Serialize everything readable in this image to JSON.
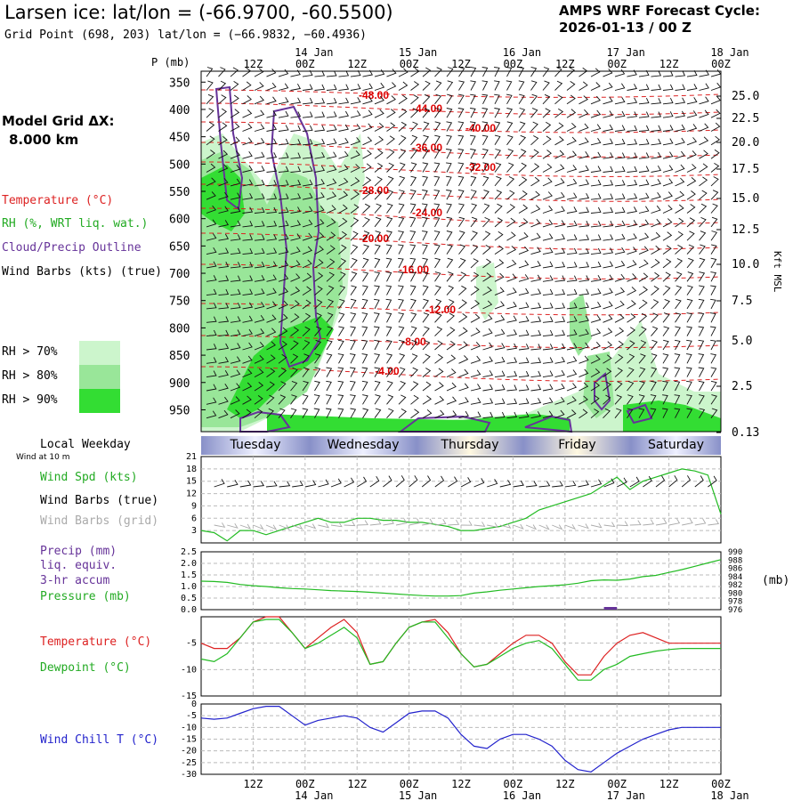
{
  "header": {
    "title": "Larsen ice:  lat/lon = (-66.9700, -60.5500)",
    "subtitle": "Grid Point (698, 203) lat/lon = (−66.9832, −60.4936)",
    "cycle_line1": "AMPS WRF Forecast Cycle:",
    "cycle_line2": "2026-01-13 / 00  Z"
  },
  "legend": {
    "model_grid_label": "Model Grid ΔX:",
    "model_grid_value": "8.000 km",
    "temperature": "Temperature (°C)",
    "rh": "RH (%, WRT liq. wat.)",
    "cloud": "Cloud/Precip Outline",
    "wind_barbs": "Wind Barbs (kts) (true)",
    "rh70": "RH > 70%",
    "rh80": "RH > 80%",
    "rh90": "RH > 90%",
    "colors": {
      "rh70": "#ccf5cc",
      "rh80": "#99e699",
      "rh90": "#33dd33",
      "temp": "#dd0000",
      "cloud": "#663399"
    }
  },
  "side_labels": {
    "local_weekday": "Local Weekday",
    "wind_at_10m": "Wind at 10 m",
    "wind_spd": "Wind Spd (kts)",
    "wind_barbs_true": "Wind Barbs (true)",
    "wind_barbs_grid": "Wind Barbs (grid)",
    "precip": "Precip (mm)",
    "liq_equiv": "liq. equiv.",
    "accum": "3-hr accum",
    "pressure": "Pressure (mb)",
    "temperature": "Temperature (°C)",
    "dewpoint": "Dewpoint (°C)",
    "wind_chill": "Wind Chill T (°C)",
    "pressure_unit": "(mb)",
    "p_axis": "P (mb)",
    "kft_axis": "Kft MSL"
  },
  "chart_data": [
    {
      "type": "heatmap",
      "x_time_labels": [
        "12Z",
        "00Z",
        "12Z",
        "00Z",
        "12Z",
        "00Z",
        "12Z",
        "00Z",
        "12Z",
        "00Z"
      ],
      "x_day_labels": [
        "14 Jan",
        "15 Jan",
        "16 Jan",
        "17 Jan",
        "18 Jan"
      ],
      "ylabel_left": "P (mb)",
      "y_pressure_ticks": [
        350,
        400,
        450,
        500,
        550,
        600,
        650,
        700,
        750,
        800,
        850,
        900,
        950
      ],
      "ylabel_right": "Kft MSL",
      "y_height_ticks": [
        "25.0",
        "22.5",
        "20.0",
        "17.5",
        "15.0",
        "12.5",
        "10.0",
        "7.5",
        "5.0",
        "2.5",
        "0.13"
      ],
      "temperature_contour_labels": [
        "-48.00",
        "-44.00",
        "-40.00",
        "-36.00",
        "-32.00",
        "-28.00",
        "-24.00",
        "-20.00",
        "-16.00",
        "-12.00",
        "-8.00",
        "-4.00"
      ]
    },
    {
      "type": "line",
      "weekdays": [
        "Tuesday",
        "Wednesday",
        "Thursday",
        "Friday",
        "Saturday"
      ],
      "ylim": [
        0,
        21
      ],
      "y_ticks": [
        3,
        6,
        9,
        12,
        15,
        18,
        21
      ],
      "series": [
        {
          "name": "Wind Spd (kts)",
          "color": "#22bb22",
          "x": [
            0,
            3,
            6,
            9,
            12,
            15,
            18,
            21,
            24,
            27,
            30,
            33,
            36,
            39,
            42,
            45,
            48,
            51,
            54,
            57,
            60,
            63,
            66,
            69,
            72,
            75,
            78,
            81,
            84,
            87,
            90,
            93,
            96,
            99,
            102,
            105,
            108,
            111,
            114,
            117,
            120
          ],
          "values": [
            3,
            2.5,
            0.5,
            3,
            3,
            2,
            3,
            4,
            5,
            6,
            5,
            5,
            6,
            6,
            5.5,
            5.5,
            5,
            5,
            4.5,
            4,
            3,
            3,
            3.5,
            4,
            5,
            6,
            8,
            9,
            10,
            11,
            12,
            14,
            16,
            13,
            15,
            16,
            17,
            18,
            17.5,
            16.5,
            7
          ]
        }
      ]
    },
    {
      "type": "line",
      "ylim_left": [
        0,
        2.5
      ],
      "y_ticks_left": [
        "0.0",
        "0.5",
        "1.0",
        "1.5",
        "2.0",
        "2.5"
      ],
      "ylim_right": [
        976,
        990
      ],
      "y_ticks_right": [
        976,
        978,
        980,
        982,
        984,
        986,
        988,
        990
      ],
      "series": [
        {
          "name": "Pressure (mb)",
          "color": "#22bb22",
          "x": [
            0,
            3,
            6,
            9,
            12,
            15,
            18,
            21,
            24,
            27,
            30,
            33,
            36,
            39,
            42,
            45,
            48,
            51,
            54,
            57,
            60,
            63,
            66,
            69,
            72,
            75,
            78,
            81,
            84,
            87,
            90,
            93,
            96,
            99,
            102,
            105,
            108,
            111,
            114,
            117,
            120
          ],
          "values": [
            982.9,
            982.8,
            982.6,
            982.1,
            981.8,
            981.6,
            981.3,
            981.1,
            981.0,
            980.8,
            980.6,
            980.5,
            980.4,
            980.2,
            980.0,
            979.8,
            979.6,
            979.4,
            979.3,
            979.3,
            979.4,
            980.0,
            980.3,
            980.7,
            981.0,
            981.3,
            981.6,
            981.8,
            982.0,
            982.4,
            983.0,
            983.2,
            983.1,
            983.4,
            984.0,
            984.3,
            985.0,
            985.7,
            986.5,
            987.3,
            988.1
          ]
        },
        {
          "name": "Precip (mm)",
          "color": "#663399",
          "x": [
            93,
            96
          ],
          "values": [
            0.05,
            0.05
          ]
        }
      ]
    },
    {
      "type": "line",
      "ylim": [
        -15,
        0
      ],
      "y_ticks": [
        -15,
        -10,
        -5
      ],
      "series": [
        {
          "name": "Temperature (°C)",
          "color": "#dd2222",
          "x": [
            0,
            3,
            6,
            9,
            12,
            15,
            18,
            21,
            24,
            27,
            30,
            33,
            36,
            39,
            42,
            45,
            48,
            51,
            54,
            57,
            60,
            63,
            66,
            69,
            72,
            75,
            78,
            81,
            84,
            87,
            90,
            93,
            96,
            99,
            102,
            105,
            108,
            111,
            114,
            117,
            120
          ],
          "values": [
            -5,
            -6,
            -6,
            -4,
            -1,
            0,
            0,
            -3,
            -6,
            -4,
            -2,
            -0.5,
            -3,
            -9,
            -8.5,
            -5,
            -2,
            -1,
            -0.5,
            -3,
            -7,
            -9.5,
            -9,
            -7,
            -5,
            -3.5,
            -3.5,
            -5,
            -8.5,
            -11,
            -11,
            -7.5,
            -5,
            -3.5,
            -3,
            -4,
            -5,
            -5,
            -5,
            -5,
            -5
          ]
        },
        {
          "name": "Dewpoint (°C)",
          "color": "#22bb22",
          "x": [
            0,
            3,
            6,
            9,
            12,
            15,
            18,
            21,
            24,
            27,
            30,
            33,
            36,
            39,
            42,
            45,
            48,
            51,
            54,
            57,
            60,
            63,
            66,
            69,
            72,
            75,
            78,
            81,
            84,
            87,
            90,
            93,
            96,
            99,
            102,
            105,
            108,
            111,
            114,
            117,
            120
          ],
          "values": [
            -8,
            -8.5,
            -7,
            -4,
            -1,
            -0.5,
            -0.5,
            -3,
            -6,
            -5,
            -3.5,
            -2,
            -4,
            -9,
            -8.5,
            -5,
            -2,
            -1,
            -1,
            -4,
            -7,
            -9.5,
            -9,
            -7.5,
            -6,
            -5,
            -4.5,
            -6,
            -9,
            -12,
            -12,
            -10,
            -9,
            -7.5,
            -7,
            -6.5,
            -6.2,
            -6,
            -6,
            -6,
            -6
          ]
        }
      ]
    },
    {
      "type": "line",
      "ylim": [
        -30,
        0
      ],
      "y_ticks": [
        0,
        -5,
        -10,
        -15,
        -20,
        -25,
        -30
      ],
      "series": [
        {
          "name": "Wind Chill T (°C)",
          "color": "#2222cc",
          "x": [
            0,
            3,
            6,
            9,
            12,
            15,
            18,
            21,
            24,
            27,
            30,
            33,
            36,
            39,
            42,
            45,
            48,
            51,
            54,
            57,
            60,
            63,
            66,
            69,
            72,
            75,
            78,
            81,
            84,
            87,
            90,
            93,
            96,
            99,
            102,
            105,
            108,
            111,
            114,
            117,
            120
          ],
          "values": [
            -6,
            -6.5,
            -6,
            -4,
            -2,
            -1,
            -1,
            -5,
            -9,
            -7,
            -6,
            -5,
            -6,
            -10,
            -12,
            -8,
            -4,
            -3,
            -3,
            -6,
            -13,
            -18,
            -19,
            -15,
            -13,
            -13,
            -15,
            -18,
            -24,
            -28,
            -29,
            -25,
            -21,
            -18,
            -15,
            -13,
            -11,
            -10,
            -10,
            -10,
            -10
          ]
        }
      ]
    }
  ]
}
